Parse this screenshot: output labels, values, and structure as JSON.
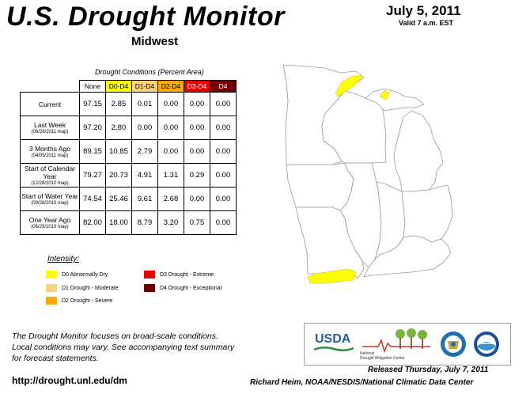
{
  "header": {
    "title": "U.S. Drought Monitor",
    "region": "Midwest",
    "date": "July 5, 2011",
    "valid": "Valid 7 a.m. EST"
  },
  "table": {
    "caption": "Drought Conditions (Percent Area)",
    "columns": [
      "None",
      "D0-D4",
      "D1-D4",
      "D2-D4",
      "D3-D4",
      "D4"
    ],
    "rows": [
      {
        "label": "Current",
        "sub": "",
        "values": [
          "97.15",
          "2.85",
          "0.01",
          "0.00",
          "0.00",
          "0.00"
        ]
      },
      {
        "label": "Last Week",
        "sub": "(06/28/2011 map)",
        "values": [
          "97.20",
          "2.80",
          "0.00",
          "0.00",
          "0.00",
          "0.00"
        ]
      },
      {
        "label": "3 Months Ago",
        "sub": "(04/05/2011 map)",
        "values": [
          "89.15",
          "10.85",
          "2.79",
          "0.00",
          "0.00",
          "0.00"
        ]
      },
      {
        "label": "Start of Calendar Year",
        "sub": "(12/28/2010 map)",
        "values": [
          "79.27",
          "20.73",
          "4.91",
          "1.31",
          "0.29",
          "0.00"
        ]
      },
      {
        "label": "Start of Water Year",
        "sub": "(09/28/2010 map)",
        "values": [
          "74.54",
          "25.46",
          "9.61",
          "2.68",
          "0.00",
          "0.00"
        ]
      },
      {
        "label": "One Year Ago",
        "sub": "(06/29/2010 map)",
        "values": [
          "82.00",
          "18.00",
          "8.79",
          "3.20",
          "0.75",
          "0.00"
        ]
      }
    ]
  },
  "legend": {
    "title": "Intensity:",
    "items": [
      {
        "label": "D0 Abnormally Dry",
        "color": "#ffff00"
      },
      {
        "label": "D1 Drought - Moderate",
        "color": "#fcd37f"
      },
      {
        "label": "D2 Drought - Severe",
        "color": "#ffaa00"
      },
      {
        "label": "D3 Drought - Extreme",
        "color": "#e60000"
      },
      {
        "label": "D4 Drought - Exceptional",
        "color": "#730000"
      }
    ]
  },
  "footer": {
    "note_lines": [
      "The Drought Monitor focuses on broad-scale conditions.",
      "Local conditions may vary. See accompanying text summary",
      "for forecast statements."
    ],
    "url": "http://drought.unl.edu/dm",
    "released": "Released Thursday, July 7, 2011",
    "author": "Richard Heim, NOAA/NESDIS/National Climatic Data Center"
  },
  "logos": {
    "usda": "USDA",
    "ndmc_line1": "National",
    "ndmc_line2": "Drought Mitigation Center"
  }
}
